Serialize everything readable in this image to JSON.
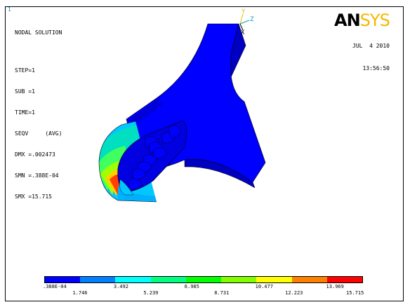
{
  "window_number": "1",
  "info": {
    "title": "NODAL SOLUTION",
    "step": "STEP=1",
    "sub": "SUB =1",
    "time": "TIME=1",
    "result": "SEQV     (AVG)",
    "dmx": "DMX =.002473",
    "smn": "SMN =.388E-04",
    "smx": "SMX =15.715"
  },
  "date": "JUL  4 2010",
  "time_of_day": "13:56:50",
  "logo": {
    "an": "AN",
    "sys": "SYS"
  },
  "triad": {
    "y": "Y",
    "z": "Z",
    "x": "X"
  },
  "legend": {
    "colors": [
      "#0000ff",
      "#0080ff",
      "#00ffff",
      "#00ff80",
      "#00ff00",
      "#80ff00",
      "#ffff00",
      "#ff8000",
      "#ff0000"
    ],
    "labels_top": [
      ".388E-04",
      "3.492",
      "6.985",
      "10.477",
      "13.969"
    ],
    "labels_bottom": [
      "1.746",
      "5.239",
      "8.731",
      "12.223",
      "15.715"
    ]
  }
}
